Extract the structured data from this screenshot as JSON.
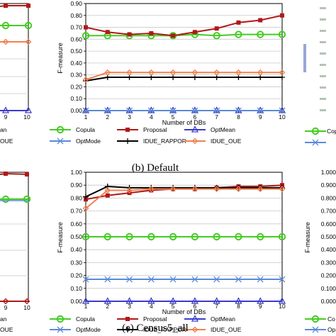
{
  "chart_data": [
    {
      "type": "line",
      "caption": "(b) Default",
      "xlabel": "Number of DBs",
      "ylabel": "F-measure",
      "x": [
        1,
        2,
        3,
        4,
        5,
        6,
        7,
        8,
        9,
        10
      ],
      "xlim": [
        1,
        10
      ],
      "ylim": [
        0,
        0.9
      ],
      "ytick_labels": [
        "0.00",
        "0.10",
        "0.20",
        "0.30",
        "0.40",
        "0.50",
        "0.60",
        "0.70",
        "0.80",
        "0.90"
      ],
      "grid": true,
      "series": [
        {
          "name": "Copula",
          "color": "#44cc22",
          "marker": "circle",
          "values": [
            0.63,
            0.63,
            0.63,
            0.63,
            0.63,
            0.64,
            0.63,
            0.64,
            0.64,
            0.64
          ]
        },
        {
          "name": "Proposal",
          "color": "#b01818",
          "marker": "square",
          "values": [
            0.7,
            0.66,
            0.64,
            0.65,
            0.63,
            0.66,
            0.69,
            0.74,
            0.76,
            0.8
          ]
        },
        {
          "name": "OptMean",
          "color": "#3a3ad0",
          "marker": "triangle",
          "values": [
            0.0,
            0.0,
            0.0,
            0.0,
            0.0,
            0.0,
            0.0,
            0.0,
            0.0,
            0.0
          ]
        },
        {
          "name": "OptMode",
          "color": "#5a8ad8",
          "marker": "x",
          "values": [
            0.0,
            0.0,
            0.0,
            0.0,
            0.0,
            0.0,
            0.0,
            0.0,
            0.0,
            0.0
          ]
        },
        {
          "name": "IDUE_RAPPOR",
          "color": "#000000",
          "marker": "plus",
          "values": [
            0.25,
            0.28,
            0.28,
            0.28,
            0.28,
            0.28,
            0.28,
            0.28,
            0.28,
            0.28
          ]
        },
        {
          "name": "IDUE_OUE",
          "color": "#f08050",
          "marker": "diamond",
          "values": [
            0.26,
            0.32,
            0.32,
            0.32,
            0.32,
            0.32,
            0.32,
            0.32,
            0.32,
            0.32
          ]
        }
      ]
    },
    {
      "type": "line",
      "caption": "(e) Census5_all",
      "xlabel": "Number of DBs",
      "ylabel": "F-measure",
      "x": [
        1,
        2,
        3,
        4,
        5,
        6,
        7,
        8,
        9,
        10
      ],
      "xlim": [
        1,
        10
      ],
      "ylim": [
        0,
        1.0
      ],
      "ytick_labels": [
        "0.00",
        "0.10",
        "0.20",
        "0.30",
        "0.40",
        "0.50",
        "0.60",
        "0.70",
        "0.80",
        "0.90",
        "1.00"
      ],
      "grid": true,
      "series": [
        {
          "name": "Copula",
          "color": "#44cc22",
          "marker": "circle",
          "values": [
            0.5,
            0.5,
            0.5,
            0.5,
            0.5,
            0.5,
            0.5,
            0.5,
            0.5,
            0.5
          ]
        },
        {
          "name": "Proposal",
          "color": "#b01818",
          "marker": "square",
          "values": [
            0.79,
            0.82,
            0.84,
            0.86,
            0.87,
            0.87,
            0.88,
            0.89,
            0.89,
            0.9
          ]
        },
        {
          "name": "OptMean",
          "color": "#3a3ad0",
          "marker": "triangle",
          "values": [
            0.0,
            0.0,
            0.0,
            0.0,
            0.0,
            0.0,
            0.0,
            0.0,
            0.0,
            0.0
          ]
        },
        {
          "name": "OptMode",
          "color": "#5a8ad8",
          "marker": "x",
          "values": [
            0.17,
            0.17,
            0.17,
            0.17,
            0.17,
            0.17,
            0.17,
            0.17,
            0.17,
            0.17
          ]
        },
        {
          "name": "IDUE_RAPPOR",
          "color": "#000000",
          "marker": "plus",
          "values": [
            0.81,
            0.89,
            0.88,
            0.88,
            0.88,
            0.88,
            0.88,
            0.88,
            0.88,
            0.88
          ]
        },
        {
          "name": "IDUE_OUE",
          "color": "#f08050",
          "marker": "diamond",
          "values": [
            0.72,
            0.86,
            0.86,
            0.87,
            0.87,
            0.87,
            0.87,
            0.87,
            0.87,
            0.87
          ]
        }
      ]
    }
  ],
  "left_partial": {
    "top_ticks": [
      "9",
      "10"
    ],
    "top_legend": [
      "an",
      "OUE"
    ],
    "bottom_ticks": [
      "9",
      "10"
    ],
    "bottom_legend": [
      "an",
      "OUE"
    ]
  },
  "right_partial": {
    "top_legend": [
      "Cop",
      ""
    ],
    "bottom_ticks": [
      "1.000",
      "0.900",
      "0.800",
      "0.700",
      "0.600",
      "0.500",
      "0.400",
      "0.300",
      "0.200",
      "0.100",
      "0.000"
    ],
    "bottom_ylabel": "F-measure",
    "bottom_legend": [
      "Co",
      "Op"
    ]
  }
}
